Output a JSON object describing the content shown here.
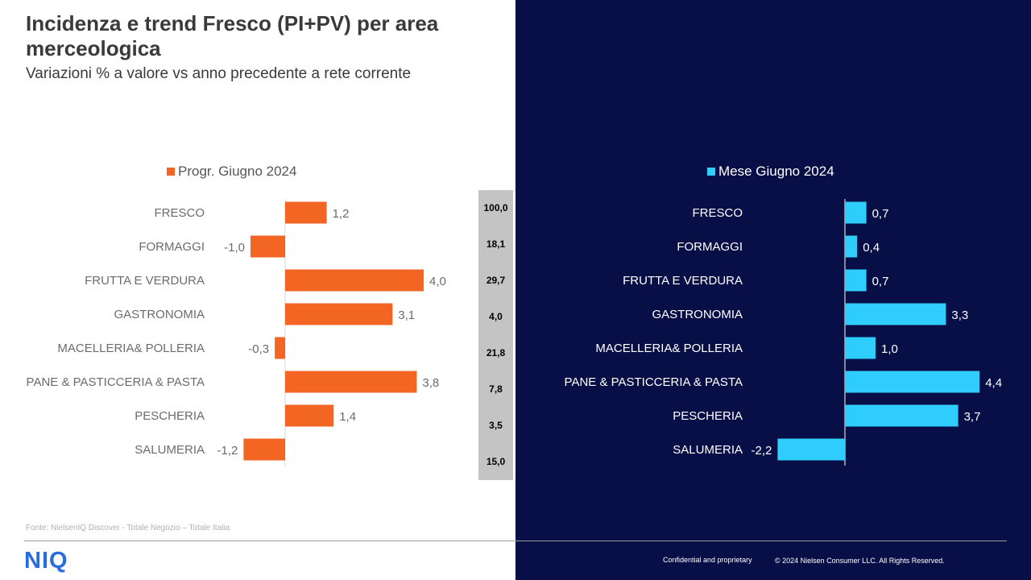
{
  "header": {
    "title": "Incidenza e trend Fresco (PI+PV) per area merceologica",
    "subtitle": "Variazioni  % a valore vs anno precedente a rete corrente"
  },
  "colors": {
    "left_series": "#f26522",
    "right_series": "#2fcdfb",
    "right_background": "#080e46",
    "incidence_box": "#c4c4c4"
  },
  "chart_data": [
    {
      "type": "bar",
      "orientation": "horizontal",
      "categories": [
        "FRESCO",
        "FORMAGGI",
        "FRUTTA E VERDURA",
        "GASTRONOMIA",
        "MACELLERIA& POLLERIA",
        "PANE & PASTICCERIA & PASTA",
        "PESCHERIA",
        "SALUMERIA"
      ],
      "series": [
        {
          "name": "Progr. Giugno 2024",
          "values": [
            1.2,
            -1.0,
            4.0,
            3.1,
            -0.3,
            3.8,
            1.4,
            -1.2
          ]
        }
      ],
      "value_labels": [
        "1,2",
        "-1,0",
        "4,0",
        "3,1",
        "-0,3",
        "3,8",
        "1,4",
        "-1,2"
      ],
      "legend": "top"
    },
    {
      "type": "bar",
      "orientation": "horizontal",
      "categories": [
        "FRESCO",
        "FORMAGGI",
        "FRUTTA E VERDURA",
        "GASTRONOMIA",
        "MACELLERIA& POLLERIA",
        "PANE & PASTICCERIA & PASTA",
        "PESCHERIA",
        "SALUMERIA"
      ],
      "series": [
        {
          "name": "Mese Giugno 2024",
          "values": [
            0.7,
            0.4,
            0.7,
            3.3,
            1.0,
            4.4,
            3.7,
            -2.2
          ]
        }
      ],
      "value_labels": [
        "0,7",
        "0,4",
        "0,7",
        "3,3",
        "1,0",
        "4,4",
        "3,7",
        "-2,2"
      ],
      "legend": "top"
    }
  ],
  "incidence": {
    "values": [
      "100,0",
      "18,1",
      "29,7",
      "4,0",
      "21,8",
      "7,8",
      "3,5",
      "15,0"
    ]
  },
  "footer": {
    "source": "Fonte: NielsenIQ Discover - Totale Negozio – Totale Italia",
    "logo": "NIQ",
    "confidential": "Confidential and proprietary",
    "copyright": "© 2024  Nielsen Consumer LLC. All Rights Reserved."
  }
}
